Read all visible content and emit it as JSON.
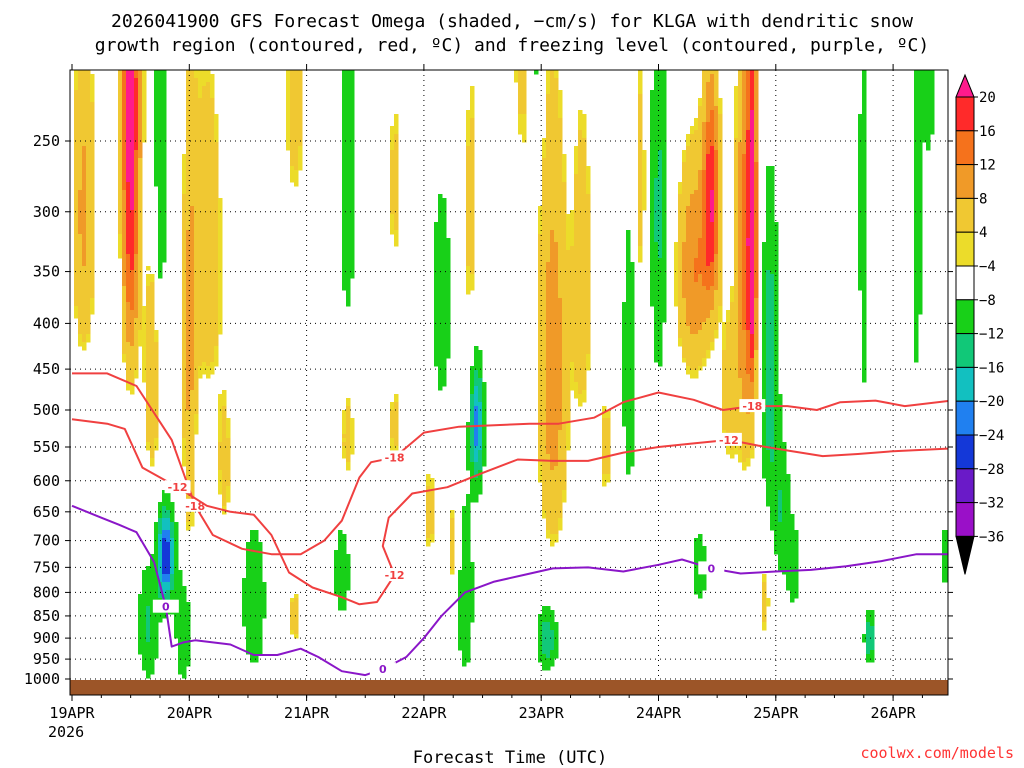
{
  "chart_data": {
    "type": "heatmap",
    "title_line1": "2026041900 GFS Forecast Omega (shaded, −cm/s) for KLGA with dendritic snow",
    "title_line2": "growth region (contoured, red, ºC) and freezing level (contoured, purple, ºC)",
    "xlabel": "Forecast Time (UTC)",
    "credit": "coolwx.com/models",
    "x_start_label_year": "2026",
    "x_ticks": [
      {
        "t": 0,
        "label": "19APR"
      },
      {
        "t": 1,
        "label": "20APR"
      },
      {
        "t": 2,
        "label": "21APR"
      },
      {
        "t": 3,
        "label": "22APR"
      },
      {
        "t": 4,
        "label": "23APR"
      },
      {
        "t": 5,
        "label": "24APR"
      },
      {
        "t": 6,
        "label": "25APR"
      },
      {
        "t": 7,
        "label": "26APR"
      }
    ],
    "xlim_days": [
      0,
      7.5
    ],
    "y_ticks": [
      250,
      300,
      350,
      400,
      450,
      500,
      550,
      600,
      650,
      700,
      750,
      800,
      850,
      900,
      950,
      1000
    ],
    "ylim_hpa": [
      200,
      1020
    ],
    "colorbar": {
      "labels": [
        "20",
        "16",
        "12",
        "8",
        "4",
        "−4",
        "−8",
        "−12",
        "−16",
        "−20",
        "−24",
        "−28",
        "−32",
        "−36"
      ],
      "levels": [
        {
          "max": 999,
          "color": "#ff1a8c"
        },
        {
          "max": 20,
          "color": "#ff2a2a"
        },
        {
          "max": 16,
          "color": "#f5721c"
        },
        {
          "max": 12,
          "color": "#f09a28"
        },
        {
          "max": 8,
          "color": "#f0c832"
        },
        {
          "max": 4,
          "color": "#ecdc2a"
        },
        {
          "max": 0,
          "color": "#ffffff"
        },
        {
          "max": -4,
          "color": "#18d018"
        },
        {
          "max": -8,
          "color": "#11c878"
        },
        {
          "max": -12,
          "color": "#12c0c0"
        },
        {
          "max": -16,
          "color": "#2080f0"
        },
        {
          "max": -20,
          "color": "#1438d8"
        },
        {
          "max": -24,
          "color": "#6a1ac8"
        },
        {
          "max": -28,
          "color": "#9a10c8"
        },
        {
          "max": -32,
          "color": "#a0a0a0"
        },
        {
          "max": -36,
          "color": "#000000"
        }
      ]
    },
    "omega_features": [
      {
        "t": 0.1,
        "p": 300,
        "st": 0.07,
        "sp": 95,
        "v": 9
      },
      {
        "t": 0.5,
        "p": 300,
        "st": 0.05,
        "sp": 100,
        "v": 18
      },
      {
        "t": 0.5,
        "p": 200,
        "st": 0.07,
        "sp": 60,
        "v": 10
      },
      {
        "t": 0.75,
        "p": 300,
        "st": 0.04,
        "sp": 160,
        "v": -8
      },
      {
        "t": 0.7,
        "p": 450,
        "st": 0.06,
        "sp": 100,
        "v": 9
      },
      {
        "t": 0.65,
        "p": 870,
        "st": 0.06,
        "sp": 90,
        "v": -9
      },
      {
        "t": 0.8,
        "p": 730,
        "st": 0.05,
        "sp": 60,
        "v": -24
      },
      {
        "t": 1.0,
        "p": 450,
        "st": 0.04,
        "sp": 200,
        "v": 8
      },
      {
        "t": 1.15,
        "p": 330,
        "st": 0.1,
        "sp": 110,
        "v": 7
      },
      {
        "t": 0.95,
        "p": 880,
        "st": 0.05,
        "sp": 90,
        "v": -8
      },
      {
        "t": 1.3,
        "p": 580,
        "st": 0.05,
        "sp": 90,
        "v": 5
      },
      {
        "t": 1.55,
        "p": 820,
        "st": 0.07,
        "sp": 110,
        "v": -8
      },
      {
        "t": 1.9,
        "p": 230,
        "st": 0.08,
        "sp": 60,
        "v": 5
      },
      {
        "t": 1.9,
        "p": 850,
        "st": 0.05,
        "sp": 60,
        "v": 5
      },
      {
        "t": 2.35,
        "p": 280,
        "st": 0.04,
        "sp": 90,
        "v": -8
      },
      {
        "t": 2.35,
        "p": 530,
        "st": 0.05,
        "sp": 70,
        "v": 5
      },
      {
        "t": 2.3,
        "p": 760,
        "st": 0.05,
        "sp": 70,
        "v": -7
      },
      {
        "t": 2.75,
        "p": 280,
        "st": 0.04,
        "sp": 60,
        "v": 5
      },
      {
        "t": 2.75,
        "p": 520,
        "st": 0.04,
        "sp": 50,
        "v": 5
      },
      {
        "t": 3.05,
        "p": 650,
        "st": 0.04,
        "sp": 80,
        "v": 5
      },
      {
        "t": 3.15,
        "p": 380,
        "st": 0.06,
        "sp": 80,
        "v": -7
      },
      {
        "t": 3.4,
        "p": 300,
        "st": 0.05,
        "sp": 100,
        "v": 5
      },
      {
        "t": 3.45,
        "p": 520,
        "st": 0.04,
        "sp": 60,
        "v": -18
      },
      {
        "t": 3.35,
        "p": 800,
        "st": 0.05,
        "sp": 130,
        "v": -8
      },
      {
        "t": 3.25,
        "p": 710,
        "st": 0.04,
        "sp": 70,
        "v": 6
      },
      {
        "t": 3.85,
        "p": 200,
        "st": 0.08,
        "sp": 60,
        "v": 5
      },
      {
        "t": 3.95,
        "p": 200,
        "st": 0.04,
        "sp": 40,
        "v": -7
      },
      {
        "t": 4.1,
        "p": 450,
        "st": 0.09,
        "sp": 170,
        "v": 11
      },
      {
        "t": 4.35,
        "p": 360,
        "st": 0.06,
        "sp": 110,
        "v": 7
      },
      {
        "t": 4.05,
        "p": 900,
        "st": 0.06,
        "sp": 50,
        "v": -12
      },
      {
        "t": 4.55,
        "p": 550,
        "st": 0.05,
        "sp": 70,
        "v": 5
      },
      {
        "t": 4.75,
        "p": 450,
        "st": 0.04,
        "sp": 110,
        "v": -8
      },
      {
        "t": 4.85,
        "p": 280,
        "st": 0.04,
        "sp": 90,
        "v": 5
      },
      {
        "t": 5.0,
        "p": 300,
        "st": 0.05,
        "sp": 110,
        "v": -9
      },
      {
        "t": 5.3,
        "p": 350,
        "st": 0.1,
        "sp": 70,
        "v": 12
      },
      {
        "t": 5.45,
        "p": 290,
        "st": 0.05,
        "sp": 60,
        "v": 18
      },
      {
        "t": 5.75,
        "p": 330,
        "st": 0.06,
        "sp": 150,
        "v": 14
      },
      {
        "t": 5.8,
        "p": 320,
        "st": 0.025,
        "sp": 90,
        "v": 19
      },
      {
        "t": 5.6,
        "p": 480,
        "st": 0.06,
        "sp": 80,
        "v": 6
      },
      {
        "t": 5.95,
        "p": 450,
        "st": 0.05,
        "sp": 120,
        "v": -12
      },
      {
        "t": 5.35,
        "p": 750,
        "st": 0.04,
        "sp": 50,
        "v": -8
      },
      {
        "t": 6.05,
        "p": 650,
        "st": 0.05,
        "sp": 80,
        "v": -8
      },
      {
        "t": 6.15,
        "p": 750,
        "st": 0.04,
        "sp": 60,
        "v": -7
      },
      {
        "t": 5.9,
        "p": 820,
        "st": 0.04,
        "sp": 70,
        "v": 5
      },
      {
        "t": 6.75,
        "p": 300,
        "st": 0.03,
        "sp": 140,
        "v": -7
      },
      {
        "t": 7.2,
        "p": 300,
        "st": 0.03,
        "sp": 110,
        "v": -8
      },
      {
        "t": 7.3,
        "p": 220,
        "st": 0.04,
        "sp": 30,
        "v": -7
      },
      {
        "t": 6.8,
        "p": 900,
        "st": 0.03,
        "sp": 40,
        "v": -13
      },
      {
        "t": 7.45,
        "p": 730,
        "st": 0.03,
        "sp": 40,
        "v": -9
      }
    ],
    "contours": [
      {
        "name": "dgz-minus-18",
        "level": "-18",
        "color": "#f04040",
        "points": [
          [
            0.0,
            455
          ],
          [
            0.3,
            455
          ],
          [
            0.55,
            470
          ],
          [
            0.85,
            540
          ],
          [
            1.05,
            640
          ],
          [
            1.2,
            690
          ],
          [
            1.45,
            715
          ],
          [
            1.7,
            725
          ],
          [
            1.95,
            725
          ],
          [
            2.15,
            700
          ],
          [
            2.3,
            665
          ],
          [
            2.45,
            595
          ],
          [
            2.55,
            572
          ],
          [
            2.75,
            565
          ],
          [
            3.0,
            530
          ],
          [
            3.3,
            522
          ],
          [
            3.6,
            520
          ],
          [
            3.9,
            518
          ],
          [
            4.15,
            518
          ],
          [
            4.45,
            510
          ],
          [
            4.7,
            490
          ],
          [
            5.0,
            478
          ],
          [
            5.3,
            487
          ],
          [
            5.55,
            500
          ],
          [
            5.8,
            495
          ],
          [
            6.1,
            495
          ],
          [
            6.35,
            500
          ],
          [
            6.55,
            490
          ],
          [
            6.85,
            488
          ],
          [
            7.1,
            495
          ],
          [
            7.5,
            488
          ]
        ]
      },
      {
        "name": "dgz-minus-12",
        "level": "-12",
        "color": "#f04040",
        "points": [
          [
            0.0,
            512
          ],
          [
            0.3,
            518
          ],
          [
            0.45,
            525
          ],
          [
            0.6,
            580
          ],
          [
            0.9,
            610
          ],
          [
            1.15,
            640
          ],
          [
            1.35,
            650
          ],
          [
            1.55,
            655
          ],
          [
            1.7,
            690
          ],
          [
            1.85,
            760
          ],
          [
            2.05,
            790
          ],
          [
            2.3,
            810
          ],
          [
            2.45,
            825
          ],
          [
            2.6,
            820
          ],
          [
            2.75,
            765
          ],
          [
            2.65,
            710
          ],
          [
            2.7,
            660
          ],
          [
            2.9,
            620
          ],
          [
            3.2,
            610
          ],
          [
            3.5,
            588
          ],
          [
            3.8,
            568
          ],
          [
            4.1,
            570
          ],
          [
            4.4,
            570
          ],
          [
            4.7,
            558
          ],
          [
            5.0,
            550
          ],
          [
            5.3,
            545
          ],
          [
            5.6,
            540
          ],
          [
            5.85,
            548
          ],
          [
            6.1,
            555
          ],
          [
            6.4,
            563
          ],
          [
            6.7,
            560
          ],
          [
            7.0,
            556
          ],
          [
            7.5,
            552
          ]
        ]
      },
      {
        "name": "freezing-level-0",
        "level": "0",
        "color": "#8a16c8",
        "points": [
          [
            0.0,
            640
          ],
          [
            0.25,
            660
          ],
          [
            0.4,
            672
          ],
          [
            0.55,
            685
          ],
          [
            0.7,
            740
          ],
          [
            0.8,
            830
          ],
          [
            0.85,
            920
          ],
          [
            0.95,
            910
          ],
          [
            1.05,
            905
          ],
          [
            1.35,
            915
          ],
          [
            1.55,
            940
          ],
          [
            1.75,
            940
          ],
          [
            1.95,
            925
          ],
          [
            2.1,
            945
          ],
          [
            2.3,
            980
          ],
          [
            2.5,
            990
          ],
          [
            2.65,
            975
          ],
          [
            2.85,
            945
          ],
          [
            3.0,
            900
          ],
          [
            3.15,
            850
          ],
          [
            3.35,
            800
          ],
          [
            3.6,
            778
          ],
          [
            3.85,
            765
          ],
          [
            4.1,
            752
          ],
          [
            4.4,
            750
          ],
          [
            4.7,
            758
          ],
          [
            5.0,
            745
          ],
          [
            5.2,
            735
          ],
          [
            5.45,
            752
          ],
          [
            5.7,
            762
          ],
          [
            6.0,
            758
          ],
          [
            6.3,
            755
          ],
          [
            6.6,
            748
          ],
          [
            6.9,
            738
          ],
          [
            7.2,
            725
          ],
          [
            7.5,
            725
          ]
        ]
      }
    ]
  }
}
